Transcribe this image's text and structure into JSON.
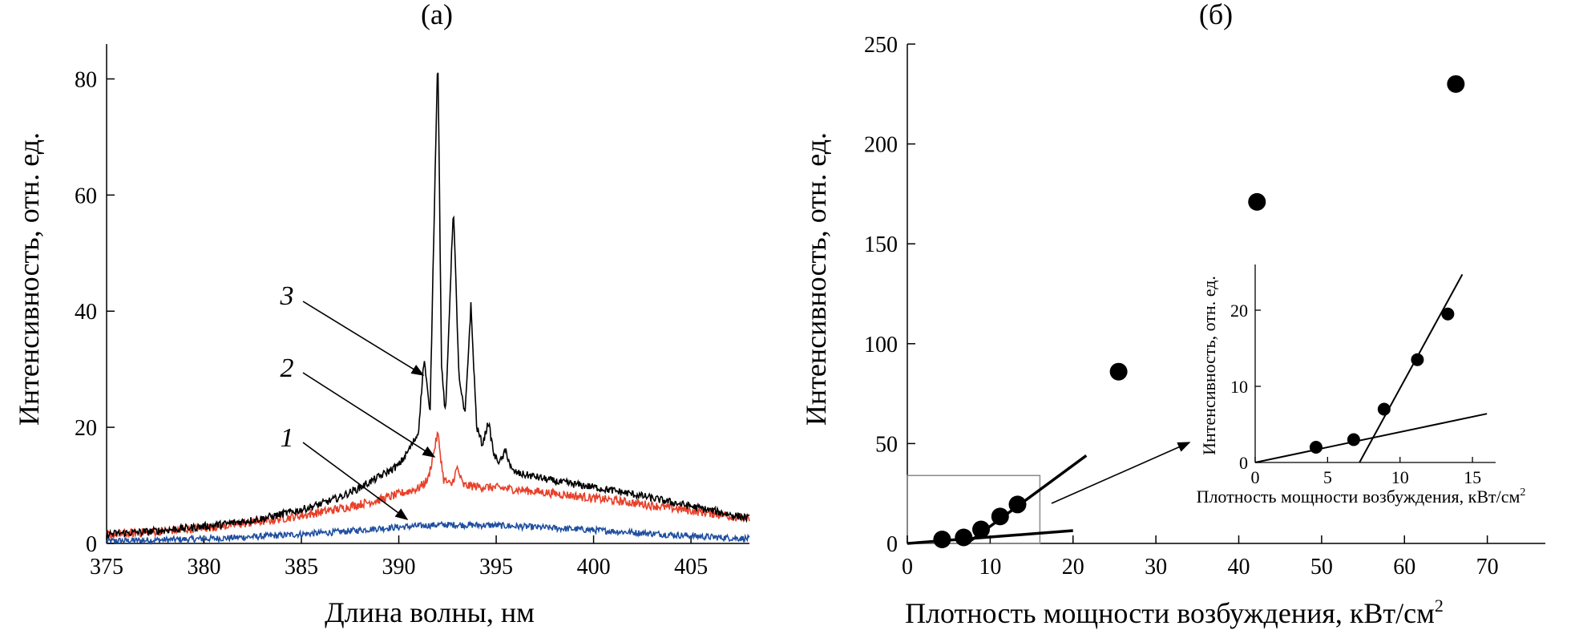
{
  "chart_data": [
    {
      "type": "line",
      "panel_label": "(а)",
      "xlabel": "Длина волны, нм",
      "ylabel": "Интенсивность, отн. ед.",
      "xlim": [
        375,
        408
      ],
      "ylim": [
        0,
        86
      ],
      "xticks": [
        "375",
        "380",
        "385",
        "390",
        "395",
        "400",
        "405"
      ],
      "yticks": [
        "0",
        "20",
        "40",
        "60",
        "80"
      ],
      "series": [
        {
          "name": "1",
          "color": "#1f4fa0",
          "x": [
            375,
            378,
            381,
            384,
            387,
            389,
            391,
            392,
            393,
            395,
            397,
            400,
            403,
            406,
            408
          ],
          "y": [
            0.4,
            0.6,
            0.9,
            1.4,
            2.0,
            2.6,
            3.0,
            3.2,
            3.2,
            3.1,
            2.8,
            2.3,
            1.7,
            1.1,
            0.8
          ]
        },
        {
          "name": "2",
          "color": "#e8402a",
          "x": [
            375,
            377,
            379,
            381,
            383,
            385,
            387,
            389,
            390,
            391,
            391.5,
            392,
            392.3,
            392.7,
            393,
            393.3,
            394,
            395,
            396,
            398,
            400,
            402,
            404,
            406,
            408
          ],
          "y": [
            1.5,
            1.9,
            2.4,
            3.0,
            3.8,
            4.8,
            6.0,
            7.5,
            8.5,
            9.5,
            11,
            19,
            11,
            10,
            13,
            10,
            9.8,
            9.6,
            9.3,
            8.6,
            7.8,
            7.0,
            6.1,
            5.2,
            4.2
          ]
        },
        {
          "name": "3",
          "color": "#000000",
          "x": [
            375,
            377,
            379,
            381,
            383,
            385,
            386,
            387,
            388,
            389,
            390,
            390.5,
            391,
            391.3,
            391.6,
            392,
            392.2,
            392.4,
            392.8,
            393.1,
            393.4,
            393.7,
            394,
            394.3,
            394.6,
            394.9,
            395.2,
            395.5,
            395.8,
            396.2,
            397,
            398,
            400,
            402,
            404,
            406,
            408
          ],
          "y": [
            1.6,
            2.0,
            2.6,
            3.3,
            4.3,
            5.8,
            6.8,
            8.0,
            9.6,
            11.5,
            13.5,
            16,
            19,
            32,
            22,
            85,
            30,
            22,
            58,
            28,
            22,
            41,
            20,
            17,
            21,
            15,
            14,
            16,
            12.5,
            12,
            11.5,
            10.7,
            9.7,
            8.5,
            7.1,
            5.7,
            4.3
          ]
        }
      ],
      "annotations": [
        "1",
        "2",
        "3"
      ]
    },
    {
      "type": "scatter",
      "panel_label": "(б)",
      "xlabel": "Плотность мощности возбуждения, кВт/см",
      "xlabel_superscript": "2",
      "ylabel": "Интенсивность, отн. ед.",
      "xlim": [
        0,
        77
      ],
      "ylim": [
        0,
        250
      ],
      "xticks": [
        "0",
        "10",
        "20",
        "30",
        "40",
        "50",
        "60",
        "70"
      ],
      "yticks": [
        "0",
        "50",
        "100",
        "150",
        "200",
        "250"
      ],
      "points": {
        "x": [
          4.2,
          6.8,
          8.9,
          11.2,
          13.3,
          25.5,
          42.2,
          66.2
        ],
        "y": [
          2,
          3,
          7,
          13.5,
          19.5,
          86,
          171,
          230
        ]
      },
      "fit_lines": [
        {
          "x": [
            0,
            20
          ],
          "y": [
            0,
            6.4
          ]
        },
        {
          "x": [
            7.2,
            21.6
          ],
          "y": [
            0,
            44
          ]
        }
      ],
      "zoom_box": {
        "x": [
          0,
          16
        ],
        "y": [
          0,
          34
        ]
      },
      "inset": {
        "xlabel": "Плотность мощности возбуждения, кВт/см",
        "xlabel_superscript": "2",
        "ylabel": "Интенсивность, отн. ед.",
        "xlim": [
          0,
          16.6
        ],
        "ylim": [
          0,
          26
        ],
        "xticks": [
          "0",
          "5",
          "10",
          "15"
        ],
        "yticks": [
          "0",
          "10",
          "20"
        ],
        "points": {
          "x": [
            4.2,
            6.8,
            8.9,
            11.2,
            13.3
          ],
          "y": [
            2,
            3,
            7,
            13.5,
            19.5
          ]
        },
        "fit_lines": [
          {
            "x": [
              0,
              16
            ],
            "y": [
              0,
              6.4
            ]
          },
          {
            "x": [
              7.2,
              14.3
            ],
            "y": [
              0,
              24.7
            ]
          }
        ]
      }
    }
  ]
}
